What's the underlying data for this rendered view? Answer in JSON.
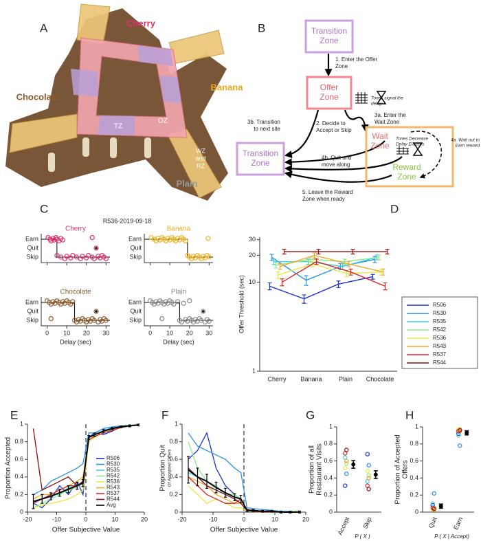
{
  "panel_a": {
    "letter": "A",
    "labels": {
      "cherry": "Cherry",
      "banana": "Banana",
      "chocolate": "Chocolate",
      "plain": "Plain",
      "tz": "TZ",
      "oz": "OZ",
      "wz_rz": [
        "WZ",
        "and",
        "RZ"
      ]
    }
  },
  "panel_b": {
    "letter": "B",
    "nodes": [
      {
        "text": [
          "Transition",
          "Zone"
        ]
      },
      {
        "text": [
          "Offer",
          "Zone"
        ]
      },
      {
        "text": [
          "Transition",
          "Zone"
        ]
      },
      {
        "text": [
          "Wait",
          "Zone"
        ]
      },
      {
        "text": [
          "Reward",
          "Zone"
        ]
      }
    ],
    "steps": [
      {
        "text": [
          "1. Enter the Offer",
          "Zone"
        ]
      },
      {
        "text": [
          "Tones signal the",
          "delay"
        ]
      },
      {
        "text": [
          "3b. Transition",
          "to next site"
        ]
      },
      {
        "text": [
          "2. Decide to",
          "Accept or Skip"
        ]
      },
      {
        "text": [
          "3a. Enter the",
          "Wait Zone"
        ]
      },
      {
        "text": [
          "4b. Quit and",
          "move along"
        ]
      },
      {
        "text": [
          "Tones Decrease",
          "Delay Elapses"
        ]
      },
      {
        "text": [
          "4a. Wait out to",
          "Earn reward"
        ]
      },
      {
        "text": [
          "5. Leave the Reward",
          "Zone when ready"
        ]
      }
    ]
  },
  "chart_data": [
    {
      "type": "delay_scatter",
      "panel": "C",
      "title": "R536-2019-09-18",
      "xlabel": "Delay (sec)",
      "xlim": [
        -3,
        32
      ],
      "xticks": [
        0,
        10,
        20,
        30
      ],
      "rows": [
        "Earn",
        "Quit",
        "Skip"
      ],
      "restaurants": [
        {
          "name": "Cherry",
          "color": "#e0306a",
          "threshold": 5,
          "earn": [
            0.5,
            1.5,
            2,
            3,
            3.5,
            4.5,
            5,
            6,
            7,
            8,
            23
          ],
          "quit": [
            25
          ],
          "skip": [
            5,
            7,
            9,
            10,
            12,
            13,
            15,
            17,
            18,
            20,
            21,
            23,
            24,
            26,
            27,
            28,
            29,
            30
          ]
        },
        {
          "name": "Banana",
          "color": "#f0b020",
          "threshold": 19,
          "earn": [
            0.5,
            2,
            3,
            4,
            5,
            6,
            7,
            8,
            9,
            10,
            11,
            12,
            13,
            14,
            15,
            16,
            17,
            18,
            29.5
          ],
          "skip": [
            19,
            20,
            21,
            22,
            23,
            24,
            25,
            26,
            27,
            28,
            29,
            30
          ]
        },
        {
          "name": "Chocolate",
          "color": "#8b5a2b",
          "threshold": 14,
          "earn": [
            0,
            1,
            2,
            3,
            4,
            5,
            6,
            7,
            8,
            9,
            10,
            11,
            12,
            13
          ],
          "quit": [
            25
          ],
          "skip": [
            2,
            14,
            15,
            16,
            17,
            18,
            19,
            20,
            21,
            22,
            23,
            24,
            26,
            27,
            28,
            29,
            30
          ]
        },
        {
          "name": "Plain",
          "color": "#888888",
          "threshold": 15,
          "earn": [
            0,
            1,
            2,
            3,
            4,
            5,
            6,
            7,
            8,
            9,
            10,
            11,
            12,
            14,
            17,
            20
          ],
          "quit": [
            27
          ],
          "skip": [
            6,
            15,
            16,
            18,
            19,
            20,
            21,
            22,
            23,
            24,
            25,
            26,
            28,
            29,
            30
          ]
        }
      ]
    },
    {
      "type": "threshold_lines",
      "panel": "D",
      "ylabel": "Offer Threshold (sec)",
      "categories": [
        "Cherry",
        "Banana",
        "Plain",
        "Chocolate"
      ],
      "log_y": true,
      "ylim": [
        1,
        32
      ],
      "yticks": [
        1,
        10,
        20,
        30
      ],
      "legend": "right",
      "series": [
        {
          "name": "R506",
          "color": "#1a2fd0",
          "values": [
            9,
            6.5,
            9.5,
            11.5
          ],
          "errors": [
            0.8,
            0.7,
            0.8,
            0.7
          ]
        },
        {
          "name": "R530",
          "color": "#2a8ee8",
          "values": [
            19,
            10.5,
            15,
            18
          ],
          "errors": [
            1.5,
            1.3,
            1.2,
            1.4
          ]
        },
        {
          "name": "R535",
          "color": "#3fd0e0",
          "values": [
            17,
            17,
            15,
            19
          ],
          "errors": [
            1.2,
            1.2,
            1.1,
            1.2
          ]
        },
        {
          "name": "R542",
          "color": "#8ee88e",
          "values": [
            15.5,
            18,
            17,
            19
          ],
          "errors": [
            1.1,
            1.2,
            1.1,
            1.2
          ]
        },
        {
          "name": "R536",
          "color": "#e8e840",
          "values": [
            12,
            16,
            12.5,
            13
          ],
          "errors": [
            1,
            1.1,
            1,
            1
          ]
        },
        {
          "name": "R543",
          "color": "#f5a623",
          "values": [
            15,
            20,
            16,
            13
          ],
          "errors": [
            1.1,
            1.3,
            1.1,
            1
          ]
        },
        {
          "name": "R537",
          "color": "#e02424",
          "values": [
            10,
            17,
            13,
            9
          ],
          "errors": [
            0.9,
            1.2,
            1,
            0.8
          ]
        },
        {
          "name": "R544",
          "color": "#8b0d0d",
          "values": [
            22,
            22,
            22,
            22
          ],
          "errors": [
            1.3,
            1.3,
            1.3,
            1.3
          ]
        }
      ]
    },
    {
      "type": "line",
      "panel": "E",
      "xlabel": "Offer Subjective Value",
      "ylabel": "Proportion Accepted",
      "x": [
        -18,
        -15,
        -12,
        -9,
        -6,
        -3,
        -1,
        1,
        3,
        6,
        9,
        12,
        15,
        18
      ],
      "xlim": [
        -20,
        20
      ],
      "xticks": [
        -20,
        -10,
        0,
        10,
        20
      ],
      "ylim": [
        0,
        1
      ],
      "yticks": [
        0,
        0.2,
        0.4,
        0.6,
        0.8,
        1
      ],
      "vline": 0,
      "legend": "lower right",
      "series": [
        {
          "name": "R506",
          "color": "#1a2fd0",
          "values": [
            0.1,
            0.05,
            0.15,
            0.3,
            0.2,
            0.35,
            0.2,
            0.85,
            0.9,
            0.88,
            0.92,
            0.97,
            0.98,
            1
          ]
        },
        {
          "name": "R530",
          "color": "#2a8ee8",
          "values": [
            0.2,
            0.25,
            0.35,
            0.4,
            0.45,
            0.5,
            0.55,
            0.9,
            0.9,
            0.95,
            0.97,
            0.98,
            0.99,
            1
          ]
        },
        {
          "name": "R535",
          "color": "#3fd0e0",
          "values": [
            0.1,
            0.15,
            0.2,
            0.2,
            0.28,
            0.3,
            0.35,
            0.85,
            0.88,
            0.93,
            0.96,
            0.97,
            0.98,
            0.99
          ]
        },
        {
          "name": "R542",
          "color": "#8ee88e",
          "values": [
            0.05,
            0.1,
            0.15,
            0.2,
            0.25,
            0.28,
            0.3,
            0.83,
            0.86,
            0.9,
            0.94,
            0.97,
            0.99,
            1
          ]
        },
        {
          "name": "R536",
          "color": "#e8e840",
          "values": [
            0.05,
            0.08,
            0.1,
            0.12,
            0.15,
            0.2,
            0.25,
            0.8,
            0.85,
            0.9,
            0.93,
            0.96,
            0.98,
            0.99
          ]
        },
        {
          "name": "R543",
          "color": "#f5a623",
          "values": [
            0.15,
            0.2,
            0.2,
            0.25,
            0.3,
            0.35,
            0.4,
            0.85,
            0.88,
            0.92,
            0.95,
            0.97,
            0.98,
            0.99
          ]
        },
        {
          "name": "R537",
          "color": "#e02424",
          "values": [
            0.1,
            0.15,
            0.2,
            0.25,
            0.3,
            0.3,
            0.35,
            0.82,
            0.86,
            0.9,
            0.93,
            0.96,
            0.98,
            0.99
          ]
        },
        {
          "name": "R544",
          "color": "#8b0d0d",
          "values": [
            0.95,
            0.25,
            0.3,
            0.35,
            0.4,
            0.3,
            0.35,
            0.85,
            0.88,
            0.92,
            0.95,
            0.97,
            0.98,
            0.99
          ]
        },
        {
          "name": "Avg",
          "color": "#000000",
          "values": [
            0.12,
            0.15,
            0.18,
            0.22,
            0.26,
            0.3,
            0.33,
            0.85,
            0.88,
            0.92,
            0.95,
            0.97,
            0.98,
            0.99
          ],
          "errors": [
            0.08,
            0.05,
            0.04,
            0.04,
            0.04,
            0.04,
            0.04,
            0.02,
            0.02,
            0.02,
            0.01,
            0.01,
            0.01,
            0.01
          ]
        }
      ]
    },
    {
      "type": "line",
      "panel": "F",
      "xlabel": "Offer Subjective Value",
      "ylabel": "Proportion Quit",
      "ylabel_note": "Of Accepted Offers",
      "x": [
        -18,
        -15,
        -12,
        -9,
        -6,
        -3,
        -1,
        1,
        3,
        6,
        9,
        12,
        15,
        18
      ],
      "xlim": [
        -20,
        20
      ],
      "xticks": [
        -20,
        -10,
        0,
        10,
        20
      ],
      "ylim": [
        0,
        1
      ],
      "yticks": [
        0,
        0.2,
        0.4,
        0.6,
        0.8,
        1
      ],
      "vline": 0,
      "series": [
        {
          "color": "#1a2fd0",
          "values": [
            0.6,
            0.7,
            0.9,
            0.5,
            0.3,
            0.2,
            0.15,
            0.02,
            0.02,
            0.01,
            0.02,
            0,
            0,
            0
          ]
        },
        {
          "color": "#2a8ee8",
          "values": [
            0.9,
            0.75,
            0.7,
            0.65,
            0.6,
            0.5,
            0.45,
            0.05,
            0.04,
            0.03,
            0.02,
            0.01,
            0.01,
            0
          ]
        },
        {
          "color": "#3fd0e0",
          "values": [
            0.45,
            0.4,
            0.3,
            0.25,
            0.2,
            0.15,
            0.1,
            0.02,
            0.01,
            0.01,
            0.01,
            0,
            0,
            0
          ]
        },
        {
          "color": "#8ee88e",
          "values": [
            0.8,
            0.5,
            0.35,
            0.3,
            0.2,
            0.2,
            0.15,
            0.02,
            0.02,
            0.01,
            0,
            0,
            0,
            0.02
          ]
        },
        {
          "color": "#e8e840",
          "values": [
            0.3,
            0.2,
            0.1,
            0.15,
            0.1,
            0.05,
            0.05,
            0.01,
            0.01,
            0,
            0,
            0,
            0,
            0
          ]
        },
        {
          "color": "#f5a623",
          "values": [
            0.4,
            0.35,
            0.3,
            0.2,
            0.15,
            0.1,
            0.1,
            0.02,
            0.01,
            0.01,
            0,
            0,
            0,
            0
          ]
        },
        {
          "color": "#e02424",
          "values": [
            0.4,
            0.3,
            0.2,
            0.15,
            0.1,
            0.1,
            0.15,
            0.03,
            0.02,
            0.01,
            0.01,
            0,
            0,
            0
          ]
        },
        {
          "color": "#8b0d0d",
          "values": [
            0.5,
            0.4,
            0.3,
            0.25,
            0.2,
            0.15,
            0.1,
            0.02,
            0.01,
            0,
            0,
            0,
            0,
            0
          ]
        },
        {
          "color": "#000000",
          "values": [
            0.48,
            0.4,
            0.35,
            0.28,
            0.22,
            0.17,
            0.15,
            0.02,
            0.02,
            0.01,
            0.01,
            0,
            0,
            0
          ],
          "errors": [
            0.15,
            0.1,
            0.08,
            0.06,
            0.05,
            0.04,
            0.04,
            0.01,
            0.01,
            0.01,
            0.01,
            0.01,
            0.01,
            0.01
          ]
        }
      ]
    },
    {
      "type": "strip",
      "panel": "G",
      "ylabel": [
        "Proportion of all",
        "Restaurant Visits"
      ],
      "xlabel": "P ( X )",
      "categories": [
        "Accept",
        "Skip"
      ],
      "ylim": [
        0,
        1
      ],
      "yticks": [
        0,
        0.2,
        0.4,
        0.6,
        0.8,
        1
      ],
      "series": [
        {
          "color": "#1a2fd0",
          "values": [
            0.31,
            0.68
          ]
        },
        {
          "color": "#2a8ee8",
          "values": [
            0.45,
            0.55
          ]
        },
        {
          "color": "#3fd0e0",
          "values": [
            0.64,
            0.36
          ]
        },
        {
          "color": "#8ee88e",
          "values": [
            0.57,
            0.43
          ]
        },
        {
          "color": "#e8e840",
          "values": [
            0.52,
            0.48
          ]
        },
        {
          "color": "#f5a623",
          "values": [
            0.6,
            0.4
          ]
        },
        {
          "color": "#e02424",
          "values": [
            0.69,
            0.31
          ]
        },
        {
          "color": "#8b0d0d",
          "values": [
            0.73,
            0.27
          ]
        }
      ],
      "mean": [
        0.56,
        0.44
      ],
      "errors": [
        0.045,
        0.045
      ]
    },
    {
      "type": "strip",
      "panel": "H",
      "ylabel": [
        "Proportion of Accepted",
        "Offers"
      ],
      "xlabel": "P ( X | Accept)",
      "categories": [
        "Quit",
        "Earn"
      ],
      "ylim": [
        0,
        1
      ],
      "yticks": [
        0,
        0.2,
        0.4,
        0.6,
        0.8,
        1
      ],
      "series": [
        {
          "color": "#1a2fd0",
          "values": [
            0.08,
            0.92
          ]
        },
        {
          "color": "#2a8ee8",
          "values": [
            0.22,
            0.78
          ]
        },
        {
          "color": "#3fd0e0",
          "values": [
            0.1,
            0.9
          ]
        },
        {
          "color": "#8ee88e",
          "values": [
            0.05,
            0.95
          ]
        },
        {
          "color": "#e8e840",
          "values": [
            0.03,
            0.97
          ]
        },
        {
          "color": "#f5a623",
          "values": [
            0.03,
            0.97
          ]
        },
        {
          "color": "#e02424",
          "values": [
            0.05,
            0.95
          ]
        },
        {
          "color": "#8b0d0d",
          "values": [
            0.04,
            0.96
          ]
        }
      ],
      "mean": [
        0.07,
        0.93
      ],
      "errors": [
        0.025,
        0.025
      ]
    }
  ]
}
